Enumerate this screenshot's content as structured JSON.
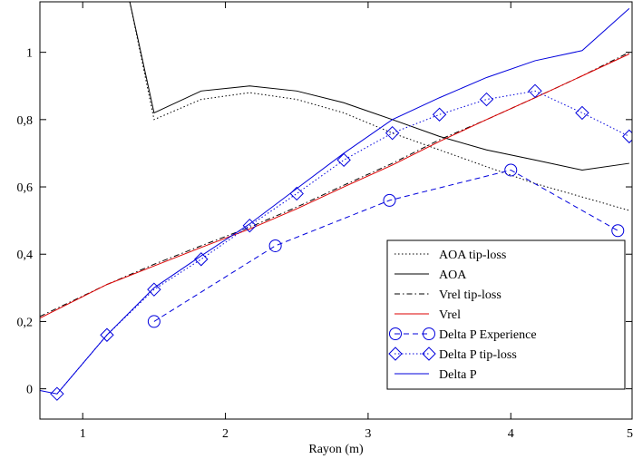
{
  "chart_data": {
    "type": "line",
    "title": "",
    "xlabel": "Rayon (m)",
    "ylabel": "",
    "xlim": [
      0.7,
      4.85
    ],
    "ylim": [
      -0.09,
      1.15
    ],
    "x_ticks": [
      1,
      2,
      3,
      4,
      5
    ],
    "x_tick_labels": [
      "1",
      "2",
      "3",
      "4",
      "5"
    ],
    "y_ticks": [
      0,
      0.2,
      0.4,
      0.6,
      0.8,
      1
    ],
    "y_tick_labels": [
      "0",
      "0,2",
      "0,4",
      "0,6",
      "0,8",
      "1"
    ],
    "grid": false,
    "legend_position": "bottom-right",
    "series": [
      {
        "name": "AOA tip-loss",
        "color": "#000000",
        "dash": "dotted",
        "marker": "none",
        "x": [
          1.33,
          1.5,
          1.83,
          2.17,
          2.5,
          2.83,
          3.17,
          3.5,
          3.83,
          4.17,
          4.5,
          4.83
        ],
        "y": [
          1.15,
          0.8,
          0.86,
          0.88,
          0.86,
          0.82,
          0.76,
          0.71,
          0.66,
          0.61,
          0.57,
          0.53
        ]
      },
      {
        "name": "AOA",
        "color": "#000000",
        "dash": "solid",
        "marker": "none",
        "x": [
          1.33,
          1.5,
          1.83,
          2.17,
          2.5,
          2.83,
          3.17,
          3.5,
          3.83,
          4.17,
          4.5,
          4.83
        ],
        "y": [
          1.15,
          0.82,
          0.885,
          0.9,
          0.885,
          0.85,
          0.8,
          0.75,
          0.71,
          0.68,
          0.65,
          0.67
        ]
      },
      {
        "name": "Vrel tip-loss",
        "color": "#000000",
        "dash": "dashdot",
        "marker": "none",
        "x": [
          0.7,
          1.17,
          1.5,
          1.83,
          2.17,
          2.5,
          2.83,
          3.17,
          3.5,
          3.83,
          4.17,
          4.5,
          4.83
        ],
        "y": [
          0.215,
          0.31,
          0.37,
          0.425,
          0.48,
          0.54,
          0.605,
          0.67,
          0.74,
          0.8,
          0.865,
          0.93,
          1.0
        ]
      },
      {
        "name": "Vrel",
        "color": "#dd0000",
        "dash": "solid",
        "marker": "none",
        "x": [
          0.7,
          1.17,
          1.5,
          1.83,
          2.17,
          2.5,
          2.83,
          3.17,
          3.5,
          3.83,
          4.17,
          4.5,
          4.83
        ],
        "y": [
          0.21,
          0.31,
          0.365,
          0.42,
          0.475,
          0.535,
          0.6,
          0.665,
          0.735,
          0.8,
          0.865,
          0.93,
          0.995
        ]
      },
      {
        "name": "Delta P Experience",
        "color": "#0000dd",
        "dash": "dashed",
        "marker": "circle",
        "x": [
          1.5,
          2.35,
          3.15,
          4.0,
          4.75
        ],
        "y": [
          0.2,
          0.425,
          0.56,
          0.65,
          0.47
        ]
      },
      {
        "name": "Delta P tip-loss",
        "color": "#0000dd",
        "dash": "dotted",
        "marker": "diamond",
        "x": [
          0.82,
          1.17,
          1.5,
          1.83,
          2.17,
          2.5,
          2.83,
          3.17,
          3.5,
          3.83,
          4.17,
          4.5,
          4.83
        ],
        "y": [
          -0.015,
          0.16,
          0.295,
          0.385,
          0.485,
          0.58,
          0.68,
          0.76,
          0.815,
          0.86,
          0.885,
          0.82,
          0.75
        ]
      },
      {
        "name": "Delta P",
        "color": "#0000dd",
        "dash": "solid",
        "marker": "none",
        "x": [
          0.7,
          0.82,
          1.17,
          1.5,
          1.83,
          2.17,
          2.5,
          2.83,
          3.17,
          3.5,
          3.83,
          4.17,
          4.5,
          4.83
        ],
        "y": [
          -0.005,
          -0.015,
          0.16,
          0.3,
          0.395,
          0.49,
          0.595,
          0.7,
          0.8,
          0.865,
          0.925,
          0.975,
          1.005,
          1.13
        ]
      }
    ]
  }
}
